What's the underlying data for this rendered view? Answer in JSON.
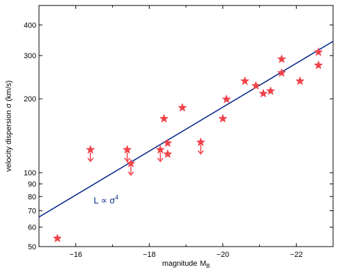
{
  "chart_data": {
    "type": "scatter",
    "title": "",
    "xlabel": "magnitude",
    "xlabel_sub": "B",
    "ylabel": "velocity dispersion  σ (km/s)",
    "x_scale": "linear",
    "x_reversed": true,
    "y_scale": "log",
    "xlim": [
      -15,
      -23
    ],
    "ylim": [
      50,
      480
    ],
    "x_ticks": [
      -16,
      -18,
      -20,
      -22
    ],
    "x_tick_labels": [
      "−16",
      "−18",
      "−20",
      "−22"
    ],
    "y_ticks_labeled": [
      50,
      60,
      70,
      80,
      90,
      100,
      200,
      300,
      400
    ],
    "y_tick_labels": [
      "50",
      "60",
      "70",
      "80",
      "90",
      "100",
      "200",
      "300",
      "400"
    ],
    "grid": false,
    "fit_line": {
      "relation_text": "L ∝ σ",
      "relation_exponent": "4",
      "color": "#0a2a8a",
      "points": [
        {
          "x": -15,
          "y": 66
        },
        {
          "x": -23,
          "y": 343
        }
      ]
    },
    "series": [
      {
        "marker": "star",
        "color": "#f0424a",
        "points": [
          {
            "x": -15.5,
            "y": 54,
            "upper_limit": false
          },
          {
            "x": -16.4,
            "y": 124,
            "upper_limit": true
          },
          {
            "x": -17.4,
            "y": 124,
            "upper_limit": true
          },
          {
            "x": -17.5,
            "y": 109,
            "upper_limit": true
          },
          {
            "x": -18.3,
            "y": 124,
            "upper_limit": true
          },
          {
            "x": -18.4,
            "y": 166,
            "upper_limit": false
          },
          {
            "x": -18.5,
            "y": 132,
            "upper_limit": false
          },
          {
            "x": -18.5,
            "y": 119,
            "upper_limit": false
          },
          {
            "x": -18.9,
            "y": 184,
            "upper_limit": false
          },
          {
            "x": -19.4,
            "y": 133,
            "upper_limit": true
          },
          {
            "x": -20.0,
            "y": 166,
            "upper_limit": false
          },
          {
            "x": -20.1,
            "y": 199,
            "upper_limit": false
          },
          {
            "x": -20.6,
            "y": 236,
            "upper_limit": false
          },
          {
            "x": -20.9,
            "y": 226,
            "upper_limit": false
          },
          {
            "x": -21.1,
            "y": 210,
            "upper_limit": false
          },
          {
            "x": -21.3,
            "y": 215,
            "upper_limit": false
          },
          {
            "x": -21.6,
            "y": 290,
            "upper_limit": false
          },
          {
            "x": -21.6,
            "y": 255,
            "upper_limit": false
          },
          {
            "x": -22.1,
            "y": 236,
            "upper_limit": false
          },
          {
            "x": -22.6,
            "y": 310,
            "upper_limit": false
          },
          {
            "x": -22.6,
            "y": 274,
            "upper_limit": false
          }
        ]
      }
    ]
  }
}
